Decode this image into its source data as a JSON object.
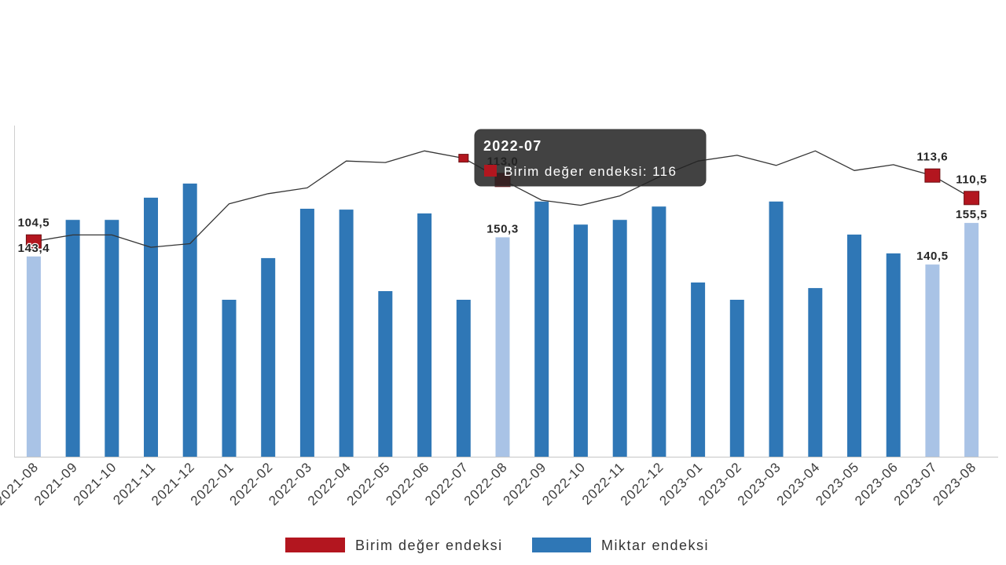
{
  "chart_data": {
    "type": "bar",
    "categories": [
      "2021-08",
      "2021-09",
      "2021-10",
      "2021-11",
      "2021-12",
      "2022-01",
      "2022-02",
      "2022-03",
      "2022-04",
      "2022-05",
      "2022-06",
      "2022-07",
      "2022-08",
      "2022-09",
      "2022-10",
      "2022-11",
      "2022-12",
      "2023-01",
      "2023-02",
      "2023-03",
      "2023-04",
      "2023-05",
      "2023-06",
      "2023-07",
      "2023-08"
    ],
    "series": [
      {
        "name": "Miktar endeksi",
        "type": "bar",
        "color": "#2f77b6",
        "highlight_color": "#a9c3e6",
        "values": [
          143.4,
          156.6,
          156.6,
          164.6,
          169.7,
          127.8,
          142.8,
          160.6,
          160.3,
          130.9,
          158.9,
          127.8,
          150.3,
          163.2,
          154.9,
          156.6,
          161.4,
          134.0,
          127.8,
          163.2,
          132.0,
          151.3,
          144.5,
          140.5,
          155.5
        ],
        "highlighted": [
          true,
          false,
          false,
          false,
          false,
          false,
          false,
          false,
          false,
          false,
          false,
          false,
          true,
          false,
          false,
          false,
          false,
          false,
          false,
          false,
          false,
          false,
          false,
          true,
          true
        ],
        "labels": [
          "143,4",
          null,
          null,
          null,
          null,
          null,
          null,
          null,
          null,
          null,
          null,
          null,
          "150,3",
          null,
          null,
          null,
          null,
          null,
          null,
          null,
          null,
          null,
          null,
          "140,5",
          "155,5"
        ]
      },
      {
        "name": "Birim değer endeksi",
        "type": "line",
        "color": "#b3161f",
        "line_color": "#353535",
        "values": [
          104.5,
          105.4,
          105.4,
          103.7,
          104.2,
          109.7,
          111.1,
          111.9,
          115.6,
          115.4,
          117.0,
          116.0,
          113.0,
          110.2,
          109.5,
          110.8,
          113.4,
          115.6,
          116.4,
          115.0,
          117.0,
          114.3,
          115.1,
          113.6,
          110.5
        ],
        "labels": [
          "104,5",
          null,
          null,
          null,
          null,
          null,
          null,
          null,
          null,
          null,
          null,
          null,
          "113,0",
          null,
          null,
          null,
          null,
          null,
          null,
          null,
          null,
          null,
          null,
          "113,6",
          "110,5"
        ]
      }
    ],
    "y_axis": {
      "min": 71.2,
      "max": 190.6,
      "visible": false
    },
    "y_axis_secondary": {
      "min": 74.8,
      "max": 120.5,
      "visible": false
    },
    "grid": false,
    "legend": {
      "position": "bottom-center"
    },
    "tooltip": {
      "title": "2022-07",
      "text": "Birim değer endeksi: 116"
    }
  }
}
